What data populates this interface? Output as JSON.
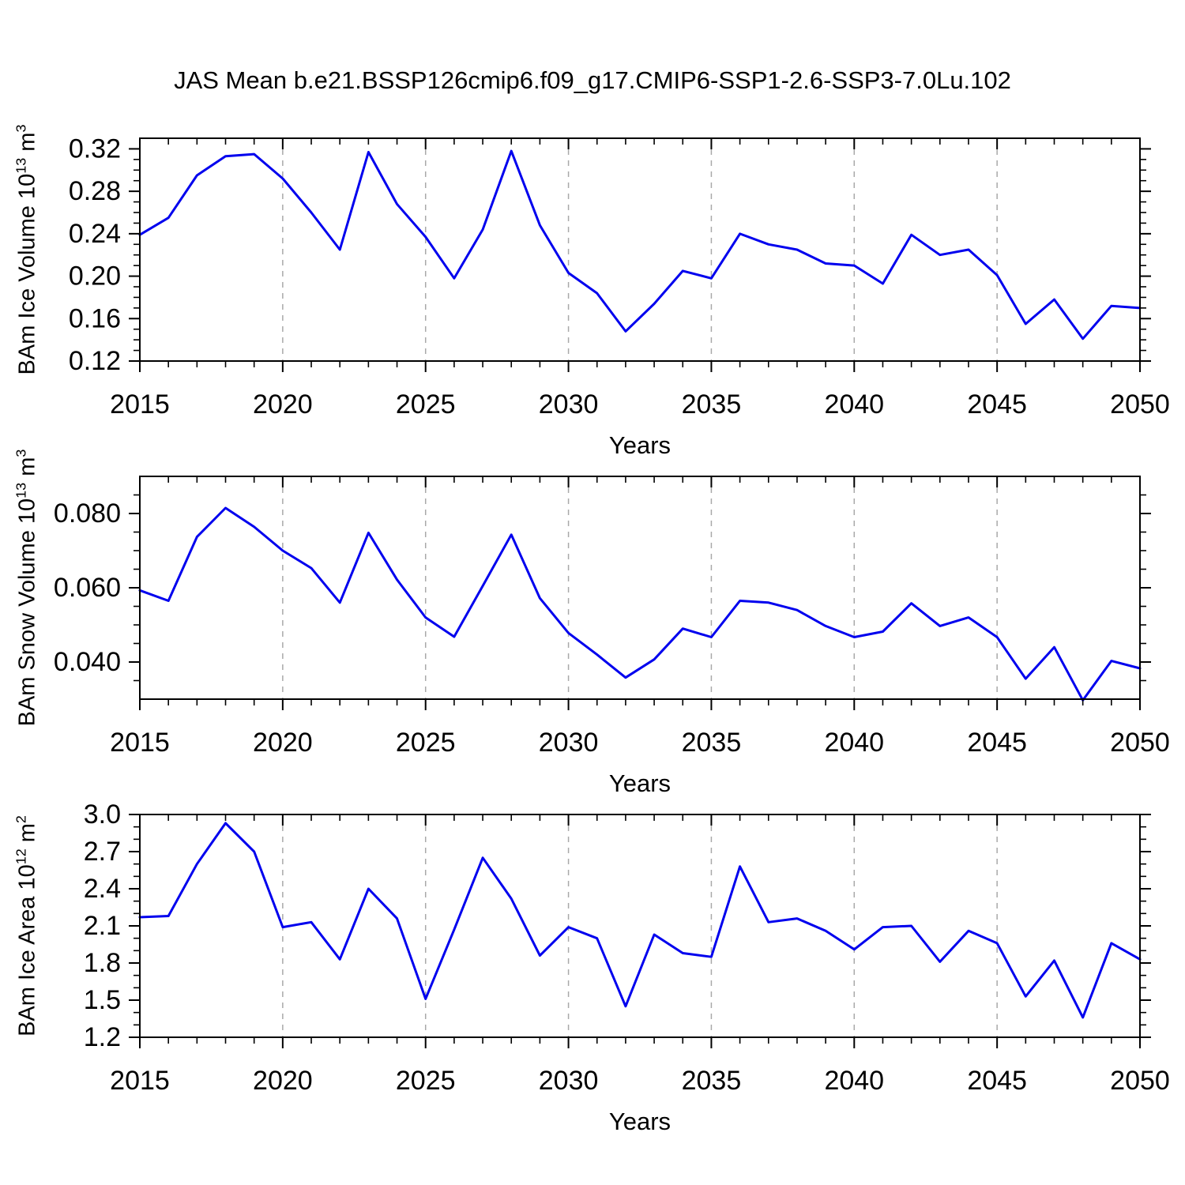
{
  "title": "JAS Mean b.e21.BSSP126cmip6.f09_g17.CMIP6-SSP1-2.6-SSP3-7.0Lu.102",
  "xlabel": "Years",
  "colors": {
    "line": "#0000ee",
    "frame": "#000000",
    "grid": "#a9a9a9",
    "text": "#000000",
    "background": "#ffffff"
  },
  "chart_data": [
    {
      "type": "line",
      "id": "ice-volume",
      "ylabel": {
        "pre": "BAm Ice Volume 10",
        "exp": "13",
        "unit": " m",
        "unit_exp": "3"
      },
      "x": [
        2015,
        2016,
        2017,
        2018,
        2019,
        2020,
        2021,
        2022,
        2023,
        2024,
        2025,
        2026,
        2027,
        2028,
        2029,
        2030,
        2031,
        2032,
        2033,
        2034,
        2035,
        2036,
        2037,
        2038,
        2039,
        2040,
        2041,
        2042,
        2043,
        2044,
        2045,
        2046,
        2047,
        2048,
        2049,
        2050
      ],
      "values": [
        0.239,
        0.255,
        0.295,
        0.313,
        0.315,
        0.292,
        0.26,
        0.225,
        0.317,
        0.268,
        0.237,
        0.198,
        0.244,
        0.318,
        0.248,
        0.203,
        0.184,
        0.148,
        0.174,
        0.205,
        0.198,
        0.24,
        0.23,
        0.225,
        0.212,
        0.21,
        0.193,
        0.239,
        0.22,
        0.225,
        0.201,
        0.155,
        0.178,
        0.141,
        0.172,
        0.17
      ],
      "xlim": [
        2015,
        2050
      ],
      "ylim": [
        0.12,
        0.33
      ],
      "xticks": [
        2015,
        2020,
        2025,
        2030,
        2035,
        2040,
        2045,
        2050
      ],
      "xtick_labels": [
        "2015",
        "2020",
        "2025",
        "2030",
        "2035",
        "2040",
        "2045",
        "2050"
      ],
      "x_minor_step": 1,
      "grid_x": [
        2020,
        2025,
        2030,
        2035,
        2040,
        2045
      ],
      "yticks": [
        0.12,
        0.16,
        0.2,
        0.24,
        0.28,
        0.32
      ],
      "ytick_labels": [
        "0.12",
        "0.16",
        "0.20",
        "0.24",
        "0.28",
        "0.32"
      ],
      "y_minor_step": 0.01,
      "grid_on": "x-dashed"
    },
    {
      "type": "line",
      "id": "snow-volume",
      "ylabel": {
        "pre": "BAm Snow Volume 10",
        "exp": "13",
        "unit": " m",
        "unit_exp": "3"
      },
      "x": [
        2015,
        2016,
        2017,
        2018,
        2019,
        2020,
        2021,
        2022,
        2023,
        2024,
        2025,
        2026,
        2027,
        2028,
        2029,
        2030,
        2031,
        2032,
        2033,
        2034,
        2035,
        2036,
        2037,
        2038,
        2039,
        2040,
        2041,
        2042,
        2043,
        2044,
        2045,
        2046,
        2047,
        2048,
        2049,
        2050
      ],
      "values": [
        0.0593,
        0.0565,
        0.0737,
        0.0815,
        0.0764,
        0.07,
        0.0653,
        0.056,
        0.0748,
        0.0622,
        0.052,
        0.0468,
        0.0605,
        0.0743,
        0.0572,
        0.0478,
        0.042,
        0.0358,
        0.0407,
        0.049,
        0.0467,
        0.0565,
        0.056,
        0.054,
        0.0497,
        0.0467,
        0.0482,
        0.0558,
        0.0497,
        0.052,
        0.0467,
        0.0355,
        0.044,
        0.0297,
        0.0403,
        0.0383
      ],
      "xlim": [
        2015,
        2050
      ],
      "ylim": [
        0.03,
        0.09
      ],
      "xticks": [
        2015,
        2020,
        2025,
        2030,
        2035,
        2040,
        2045,
        2050
      ],
      "xtick_labels": [
        "2015",
        "2020",
        "2025",
        "2030",
        "2035",
        "2040",
        "2045",
        "2050"
      ],
      "x_minor_step": 1,
      "grid_x": [
        2020,
        2025,
        2030,
        2035,
        2040,
        2045
      ],
      "yticks": [
        0.04,
        0.06,
        0.08
      ],
      "ytick_labels": [
        "0.040",
        "0.060",
        "0.080"
      ],
      "y_minor_step": 0.005,
      "grid_on": "x-dashed"
    },
    {
      "type": "line",
      "id": "ice-area",
      "ylabel": {
        "pre": "BAm Ice Area 10",
        "exp": "12",
        "unit": " m",
        "unit_exp": "2"
      },
      "x": [
        2015,
        2016,
        2017,
        2018,
        2019,
        2020,
        2021,
        2022,
        2023,
        2024,
        2025,
        2026,
        2027,
        2028,
        2029,
        2030,
        2031,
        2032,
        2033,
        2034,
        2035,
        2036,
        2037,
        2038,
        2039,
        2040,
        2041,
        2042,
        2043,
        2044,
        2045,
        2046,
        2047,
        2048,
        2049,
        2050
      ],
      "values": [
        2.17,
        2.18,
        2.6,
        2.93,
        2.7,
        2.09,
        2.13,
        1.83,
        2.4,
        2.16,
        1.51,
        2.07,
        2.65,
        2.32,
        1.86,
        2.09,
        2.0,
        1.45,
        2.03,
        1.88,
        1.85,
        2.58,
        2.13,
        2.16,
        2.06,
        1.91,
        2.09,
        2.1,
        1.81,
        2.06,
        1.96,
        1.53,
        1.82,
        1.36,
        1.96,
        1.83
      ],
      "xlim": [
        2015,
        2050
      ],
      "ylim": [
        1.2,
        3.0
      ],
      "xticks": [
        2015,
        2020,
        2025,
        2030,
        2035,
        2040,
        2045,
        2050
      ],
      "xtick_labels": [
        "2015",
        "2020",
        "2025",
        "2030",
        "2035",
        "2040",
        "2045",
        "2050"
      ],
      "x_minor_step": 1,
      "grid_x": [
        2020,
        2025,
        2030,
        2035,
        2040,
        2045
      ],
      "yticks": [
        1.2,
        1.5,
        1.8,
        2.1,
        2.4,
        2.7,
        3.0
      ],
      "ytick_labels": [
        "1.2",
        "1.5",
        "1.8",
        "2.1",
        "2.4",
        "2.7",
        "3.0"
      ],
      "y_minor_step": 0.1,
      "grid_on": "x-dashed"
    }
  ]
}
